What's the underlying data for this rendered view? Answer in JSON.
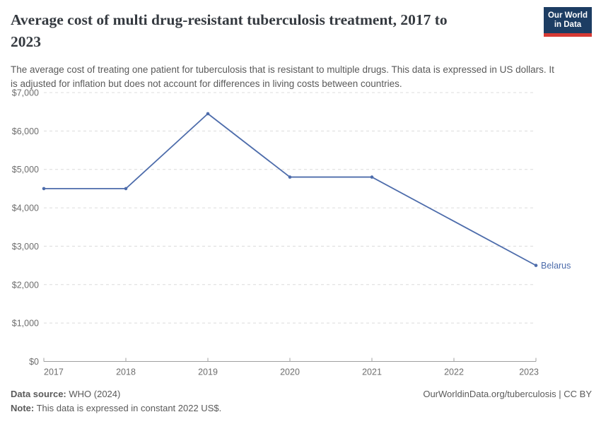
{
  "header": {
    "title_line1": "Average cost of multi drug-resistant tuberculosis treatment, 2017 to",
    "title_line2": "2023",
    "subtitle": "The average cost of treating one patient for tuberculosis that is resistant to multiple drugs. This data is expressed in US dollars. It is adjusted for inflation but does not account for differences in living costs between countries.",
    "logo": {
      "line1": "Our World",
      "line2": "in Data",
      "bg_color": "#1d3d63",
      "accent_color": "#d73a34"
    }
  },
  "chart_data": {
    "type": "line",
    "title": "Average cost of multi drug-resistant tuberculosis treatment, 2017 to 2023",
    "xlabel": "",
    "ylabel": "",
    "xlim": [
      2017,
      2023
    ],
    "ylim": [
      0,
      7000
    ],
    "grid": "horizontal-dashed",
    "legend_position": "end-of-line-label",
    "x_ticks": [
      2017,
      2018,
      2019,
      2020,
      2021,
      2022,
      2023
    ],
    "y_ticks": [
      {
        "value": 0,
        "label": "$0"
      },
      {
        "value": 1000,
        "label": "$1,000"
      },
      {
        "value": 2000,
        "label": "$2,000"
      },
      {
        "value": 3000,
        "label": "$3,000"
      },
      {
        "value": 4000,
        "label": "$4,000"
      },
      {
        "value": 5000,
        "label": "$5,000"
      },
      {
        "value": 6000,
        "label": "$6,000"
      },
      {
        "value": 7000,
        "label": "$7,000"
      }
    ],
    "series": [
      {
        "name": "Belarus",
        "end_label": "Belarus",
        "color": "#4d6cab",
        "note": "no data point for 2022; line interpolated between 2021 and 2023",
        "points": [
          [
            2017,
            4500
          ],
          [
            2018,
            4500
          ],
          [
            2019,
            6450
          ],
          [
            2020,
            4800
          ],
          [
            2021,
            4800
          ],
          [
            2023,
            2500
          ]
        ]
      }
    ]
  },
  "footer": {
    "datasource_label": "Data source:",
    "datasource_value": "WHO (2024)",
    "note_label": "Note:",
    "note_value": "This data is expressed in constant 2022 US$.",
    "link": "OurWorldinData.org/tuberculosis | CC BY"
  },
  "colors": {
    "axis": "#a0a0a0",
    "gridline": "#dcdcdc",
    "tick_label": "#6e6e6e",
    "text": "#5a5a5a",
    "title": "#353a40"
  }
}
